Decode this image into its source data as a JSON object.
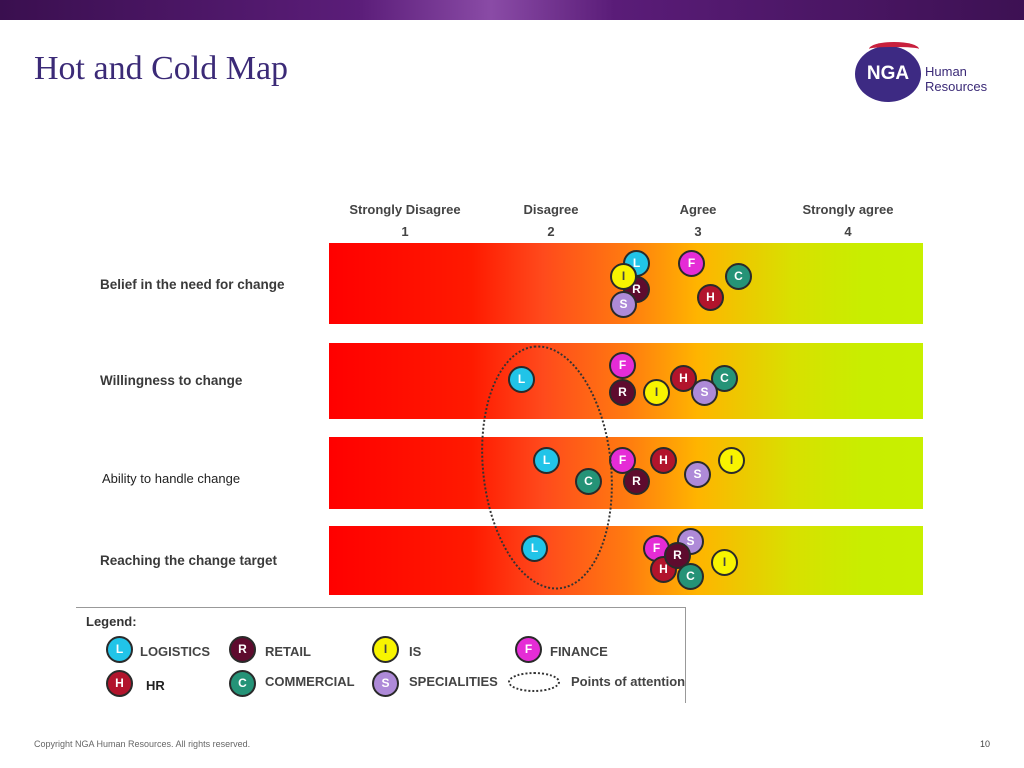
{
  "header": {
    "title": "Hot and Cold Map"
  },
  "logo": {
    "mark": "NGA",
    "line1": "Human",
    "line2": "Resources",
    "colors": {
      "circle": "#3d2a83",
      "swoosh": "#c8203d"
    }
  },
  "scale": [
    {
      "label": "Strongly Disagree",
      "num": "1"
    },
    {
      "label": "Disagree",
      "num": "2"
    },
    {
      "label": "Agree",
      "num": "3"
    },
    {
      "label": "Strongly agree",
      "num": "4"
    }
  ],
  "rows": [
    {
      "label": "Belief in the need for change"
    },
    {
      "label": "Willingness  to change"
    },
    {
      "label": "Ability to handle change"
    },
    {
      "label": "Reaching the change target"
    }
  ],
  "bubble_letters": {
    "L": "L",
    "R": "R",
    "I": "I",
    "F": "F",
    "H": "H",
    "C": "C",
    "S": "S"
  },
  "legend": {
    "title": "Legend:",
    "items": {
      "logistics": "LOGISTICS",
      "retail": "RETAIL",
      "is": "IS",
      "finance": "FINANCE",
      "hr": "HR",
      "commercial": "COMMERCIAL",
      "specialities": "SPECIALITIES",
      "attention": "Points of attention"
    }
  },
  "footer": {
    "copyright": "Copyright NGA Human Resources. All rights reserved.",
    "page": "10"
  }
}
